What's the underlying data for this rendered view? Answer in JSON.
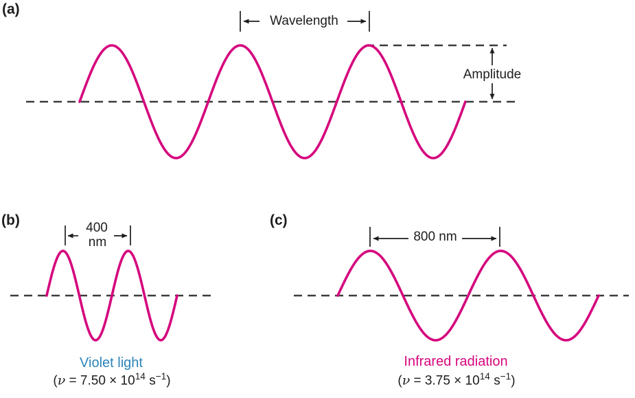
{
  "figure": {
    "background": "#ffffff",
    "wave_color": "#d5067d",
    "dash_color": "#3b3b3b",
    "ink_color": "#1d1d1d",
    "violet_caption_color": "#2b84b8",
    "infrared_caption_color": "#d5067d"
  },
  "panel_a": {
    "label": "(a)",
    "wavelength_label": "Wavelength",
    "amplitude_label": "Amplitude",
    "wave": {
      "cycles_shown": 3
    }
  },
  "panel_b": {
    "label": "(b)",
    "wavelength_value": "400",
    "wavelength_unit": "nm",
    "caption": "Violet light",
    "frequency": {
      "lead": "(",
      "nu": "ν",
      "body": " = 7.50 × 10",
      "exponent": "14",
      "unit": " s",
      "unit_exponent": "−1",
      "tail": ")"
    },
    "wave": {
      "cycles_shown": 2
    }
  },
  "panel_c": {
    "label": "(c)",
    "wavelength_text": "800 nm",
    "caption": "Infrared radiation",
    "frequency": {
      "lead": "(",
      "nu": "ν",
      "body": " = 3.75 × 10",
      "exponent": "14",
      "unit": " s",
      "unit_exponent": "−1",
      "tail": ")"
    },
    "wave": {
      "cycles_shown": 2
    }
  }
}
